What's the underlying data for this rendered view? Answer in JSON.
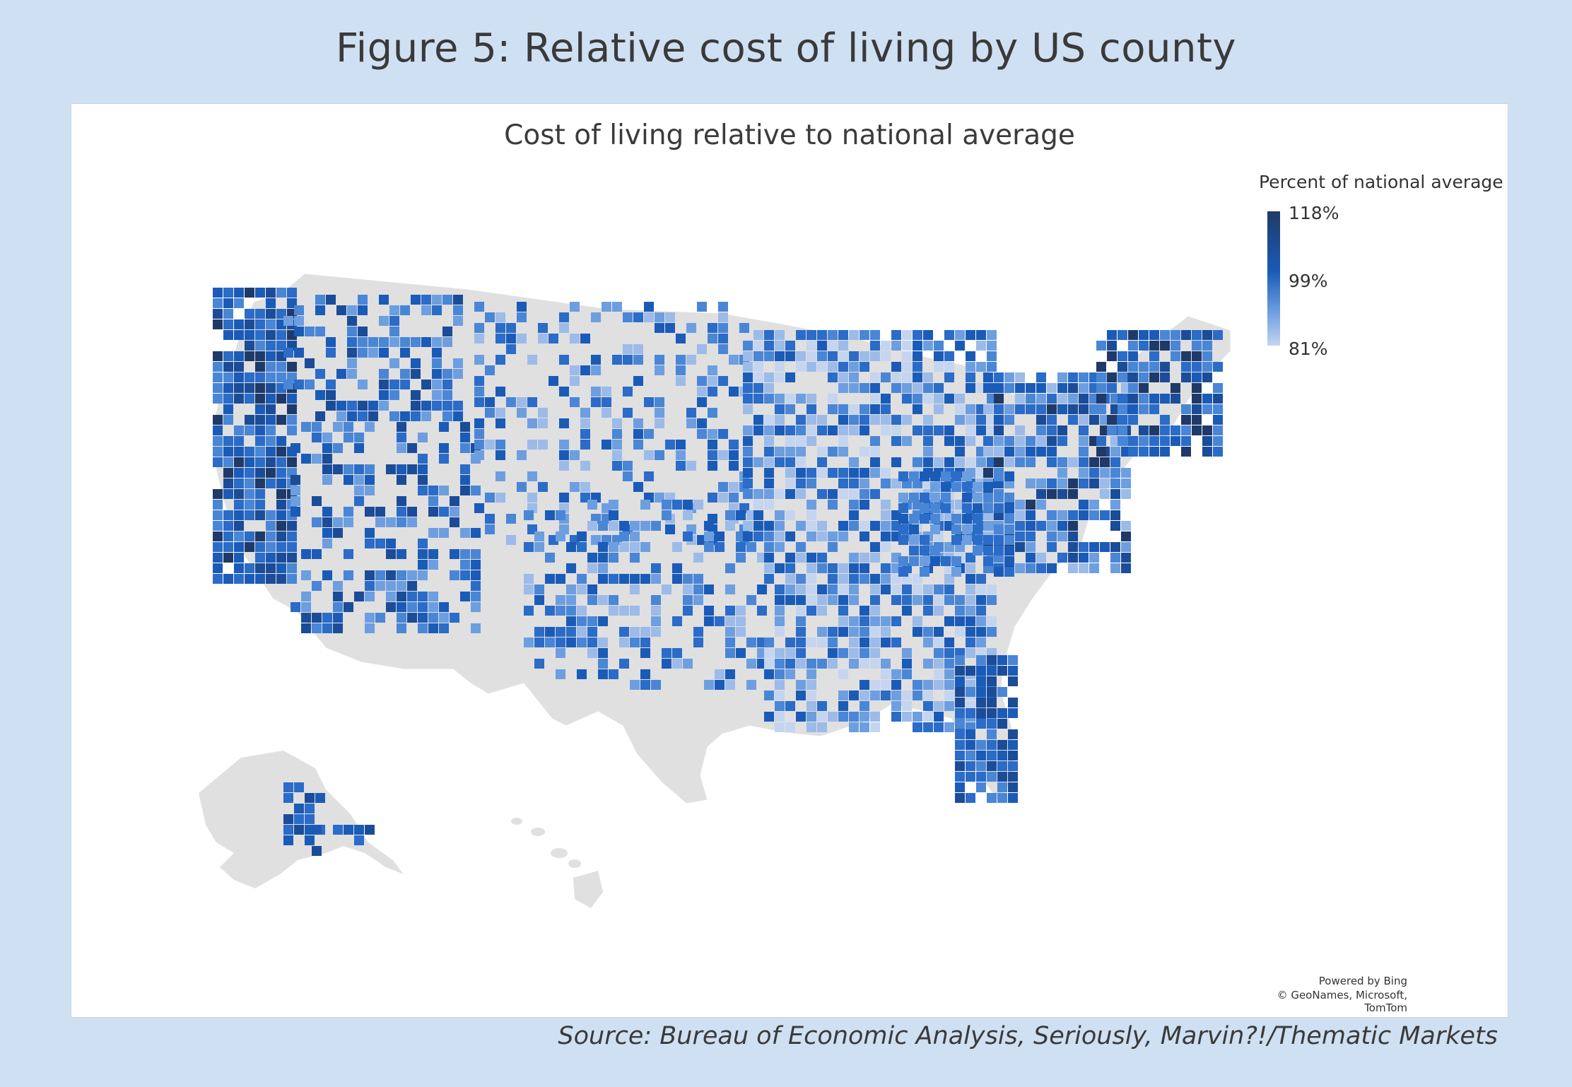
{
  "figure_title": "Figure 5: Relative cost of living by US county",
  "map_title": "Cost of living relative to national average",
  "legend": {
    "title": "Percent of national average",
    "max_label": "118%",
    "mid_label": "99%",
    "min_label": "81%"
  },
  "attribution": {
    "line1": "Powered by Bing",
    "line2": "© GeoNames, Microsoft, TomTom"
  },
  "source": "Source: Bureau of Economic Analysis, Seriously, Marvin?!/Thematic Markets",
  "colors": {
    "background": "#cfe0f3",
    "no_data": "#e0e0e0",
    "low": "#c5d5ef",
    "mid": "#1a5bb8",
    "high": "#1f3a68"
  }
}
